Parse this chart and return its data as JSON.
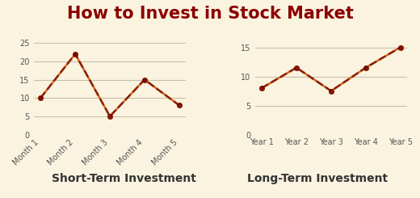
{
  "title": "How to Invest in Stock Market",
  "title_color": "#8B0000",
  "bg_color": "#FAF3E0",
  "plot_bg_color": "#FAF3E0",
  "short_term": {
    "x_labels": [
      "Month 1",
      "Month 2",
      "Month 3",
      "Month 4",
      "Month 5"
    ],
    "line1": [
      10,
      22,
      5,
      15,
      8
    ],
    "line1_color": "#D2691E",
    "line2": [
      10,
      22,
      5,
      15,
      8
    ],
    "line2_color": "#6B0000",
    "xlabel": "Short-Term Investment",
    "ylim": [
      0,
      27
    ],
    "yticks": [
      0,
      5,
      10,
      15,
      20,
      25
    ]
  },
  "long_term": {
    "x_labels": [
      "Year 1",
      "Year 2",
      "Year 3",
      "Year 4",
      "Year 5"
    ],
    "line1": [
      8,
      11.5,
      7.5,
      11.5,
      15
    ],
    "line1_color": "#D2691E",
    "line2": [
      8,
      11.5,
      7.5,
      11.5,
      15
    ],
    "line2_color": "#6B0000",
    "xlabel": "Long-Term Investment",
    "ylim": [
      0,
      17
    ],
    "yticks": [
      0,
      5,
      10,
      15
    ]
  },
  "grid_color": "#C8C0A8",
  "tick_label_color": "#555555",
  "xlabel_fontsize": 10,
  "xlabel_fontweight": "bold",
  "title_fontsize": 15,
  "line_width": 1.8,
  "marker": "o",
  "marker_size": 4,
  "teal_bar_color": "#4AADAD"
}
